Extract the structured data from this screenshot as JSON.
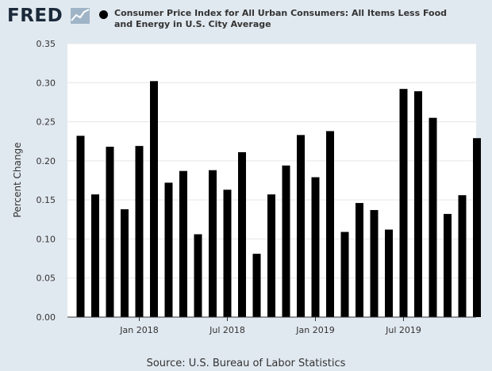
{
  "header": {
    "logo_text": "FRED",
    "logo_icon": "line-chart-icon",
    "legend_dot_color": "#000000",
    "series_title": "Consumer Price Index for All Urban Consumers: All Items Less Food and Energy in U.S. City Average"
  },
  "source": "Source: U.S. Bureau of Labor Statistics",
  "colors": {
    "background": "#e1e9f0",
    "plot_background": "#ffffff",
    "bars": "#000000",
    "grid": "#e6e6e6",
    "text": "#333333"
  },
  "chart_data": {
    "type": "bar",
    "ylabel": "Percent Change",
    "ylim": [
      0,
      0.35
    ],
    "y_ticks": [
      "0.00",
      "0.05",
      "0.10",
      "0.15",
      "0.20",
      "0.25",
      "0.30",
      "0.35"
    ],
    "grid": true,
    "x_tick_labels": [
      {
        "label": "Jan 2018",
        "date": "2018-01"
      },
      {
        "label": "Jul 2018",
        "date": "2018-07"
      },
      {
        "label": "Jan 2019",
        "date": "2019-01"
      },
      {
        "label": "Jul 2019",
        "date": "2019-07"
      }
    ],
    "series": [
      {
        "x": [
          "2017-09",
          "2017-10",
          "2017-11",
          "2017-12",
          "2018-01",
          "2018-02",
          "2018-03",
          "2018-04",
          "2018-05",
          "2018-06",
          "2018-07",
          "2018-08",
          "2018-09",
          "2018-10",
          "2018-11",
          "2018-12",
          "2019-01",
          "2019-02",
          "2019-03",
          "2019-04",
          "2019-05",
          "2019-06",
          "2019-07",
          "2019-08",
          "2019-09",
          "2019-10",
          "2019-11",
          "2019-12"
        ],
        "values": [
          0.232,
          0.157,
          0.218,
          0.138,
          0.219,
          0.302,
          0.172,
          0.187,
          0.106,
          0.188,
          0.163,
          0.211,
          0.081,
          0.157,
          0.194,
          0.233,
          0.179,
          0.238,
          0.109,
          0.146,
          0.137,
          0.112,
          0.292,
          0.289,
          0.255,
          0.132,
          0.156,
          0.229
        ]
      }
    ]
  }
}
